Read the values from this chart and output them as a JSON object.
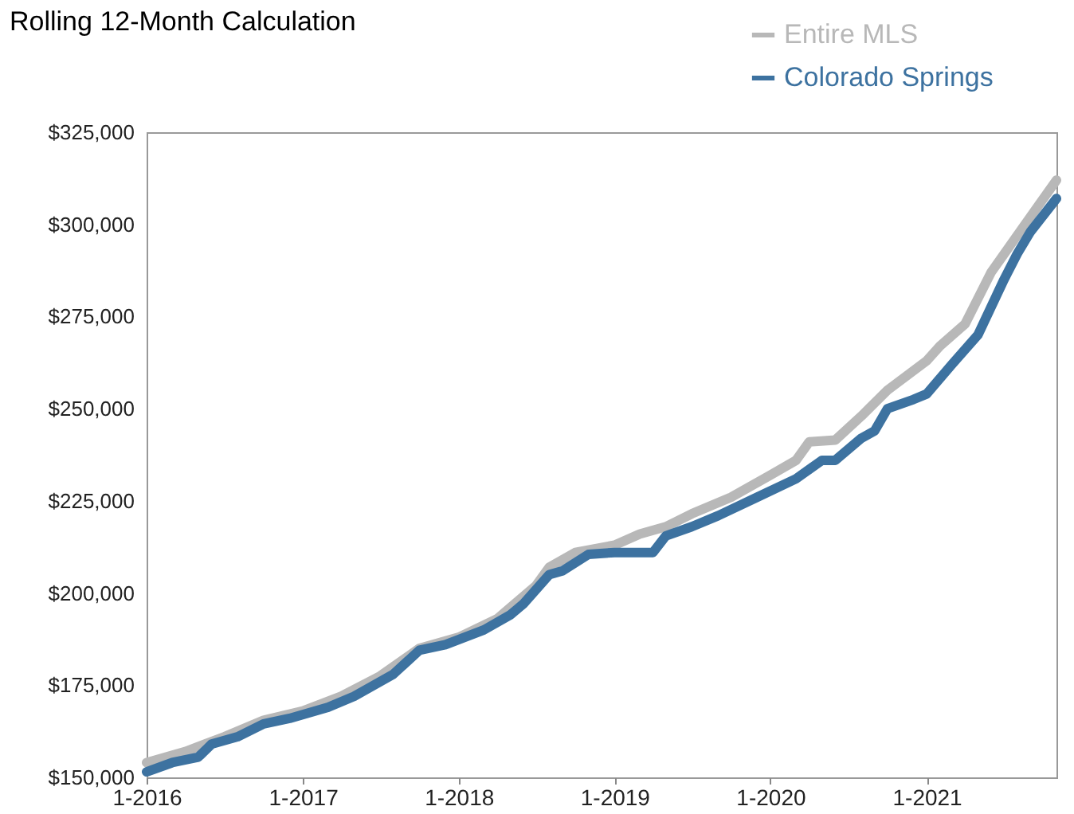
{
  "chart_data": {
    "type": "line",
    "title": "Rolling 12-Month Calculation",
    "xlim": [
      "2016-01",
      "2021-11"
    ],
    "xticks": [
      {
        "value": "2016-01",
        "label": "1-2016"
      },
      {
        "value": "2017-01",
        "label": "1-2017"
      },
      {
        "value": "2018-01",
        "label": "1-2018"
      },
      {
        "value": "2019-01",
        "label": "1-2019"
      },
      {
        "value": "2020-01",
        "label": "1-2020"
      },
      {
        "value": "2021-01",
        "label": "1-2021"
      }
    ],
    "ylim": [
      150000,
      325000
    ],
    "yticks": [
      {
        "value": 150000,
        "label": "$150,000"
      },
      {
        "value": 175000,
        "label": "$175,000"
      },
      {
        "value": 200000,
        "label": "$200,000"
      },
      {
        "value": 225000,
        "label": "$225,000"
      },
      {
        "value": 250000,
        "label": "$250,000"
      },
      {
        "value": 275000,
        "label": "$275,000"
      },
      {
        "value": 300000,
        "label": "$300,000"
      },
      {
        "value": 325000,
        "label": "$325,000"
      }
    ],
    "grid": false,
    "legend": "top right",
    "marker": "none",
    "line_style": "solid",
    "series": [
      {
        "name": "Entire MLS",
        "color": "#b8b8b8",
        "x": [
          "2016-01",
          "2016-04",
          "2016-07",
          "2016-10",
          "2017-01",
          "2017-04",
          "2017-07",
          "2017-10",
          "2018-01",
          "2018-04",
          "2018-07",
          "2018-08",
          "2018-10",
          "2019-01",
          "2019-03",
          "2019-05",
          "2019-07",
          "2019-10",
          "2020-01",
          "2020-03",
          "2020-04",
          "2020-06",
          "2020-08",
          "2020-10",
          "2021-01",
          "2021-02",
          "2021-04",
          "2021-06",
          "2021-08",
          "2021-11"
        ],
        "values": [
          154000,
          157000,
          161000,
          165500,
          168000,
          172000,
          177500,
          185000,
          188000,
          193000,
          202000,
          207000,
          211000,
          213000,
          216000,
          218000,
          221500,
          226000,
          232000,
          236000,
          241000,
          241500,
          248000,
          255000,
          263000,
          267000,
          273000,
          287000,
          297000,
          312000
        ]
      },
      {
        "name": "Colorado Springs",
        "color": "#3d72a0",
        "x": [
          "2016-01",
          "2016-03",
          "2016-05",
          "2016-06",
          "2016-08",
          "2016-10",
          "2016-12",
          "2017-03",
          "2017-05",
          "2017-08",
          "2017-10",
          "2017-12",
          "2018-03",
          "2018-05",
          "2018-06",
          "2018-08",
          "2018-09",
          "2018-11",
          "2019-01",
          "2019-04",
          "2019-05",
          "2019-07",
          "2019-09",
          "2019-12",
          "2020-03",
          "2020-05",
          "2020-06",
          "2020-08",
          "2020-09",
          "2020-10",
          "2020-12",
          "2021-01",
          "2021-03",
          "2021-05",
          "2021-07",
          "2021-08",
          "2021-09",
          "2021-11"
        ],
        "values": [
          151500,
          154000,
          155500,
          159000,
          161000,
          164500,
          166000,
          169000,
          172000,
          178000,
          184500,
          186000,
          190000,
          194000,
          197000,
          205000,
          206000,
          210500,
          211000,
          211000,
          215500,
          218000,
          221000,
          226000,
          231000,
          236000,
          236000,
          242000,
          244000,
          250000,
          252500,
          254000,
          262000,
          270000,
          285000,
          292000,
          298000,
          307000
        ]
      }
    ]
  }
}
